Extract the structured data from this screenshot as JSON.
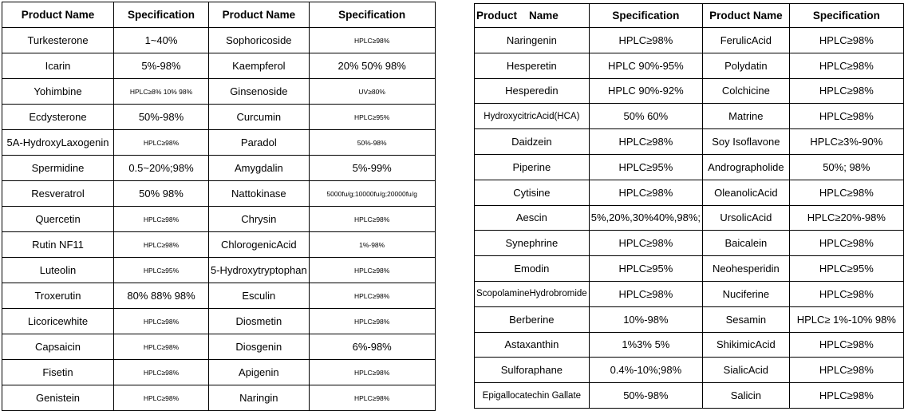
{
  "left_table": {
    "headers": [
      "Product Name",
      "Specification",
      "Product Name",
      "Specification"
    ],
    "rows": [
      [
        "Turkesterone",
        "1~40%",
        "Sophoricoside",
        "HPLC≥98%"
      ],
      [
        "Icarin",
        "5%-98%",
        "Kaempferol",
        "20% 50% 98%"
      ],
      [
        "Yohimbine",
        "HPLC≥8%  10% 98%",
        "Ginsenoside",
        "UV≥80%"
      ],
      [
        "Ecdysterone",
        "50%-98%",
        "Curcumin",
        "HPLC≥95%"
      ],
      [
        "5A-HydroxyLaxogenin",
        "HPLC≥98%",
        "Paradol",
        "50%-98%"
      ],
      [
        "Spermidine",
        "0.5~20%;98%",
        "Amygdalin",
        "5%-99%"
      ],
      [
        "Resveratrol",
        "50% 98%",
        "Nattokinase",
        "5000fu/g;10000fu/g;20000fu/g"
      ],
      [
        "Quercetin",
        "HPLC≥98%",
        "Chrysin",
        "HPLC≥98%"
      ],
      [
        "Rutin  NF11",
        "HPLC≥98%",
        "ChlorogenicAcid",
        "1%-98%"
      ],
      [
        "Luteolin",
        "HPLC≥95%",
        "5-Hydroxytryptophan",
        "HPLC≥98%"
      ],
      [
        "Troxerutin",
        "80% 88% 98%",
        "Esculin",
        "HPLC≥98%"
      ],
      [
        "Licoricewhite",
        "HPLC≥98%",
        "Diosmetin",
        "HPLC≥98%"
      ],
      [
        "Capsaicin",
        "HPLC≥98%",
        "Diosgenin",
        "6%-98%"
      ],
      [
        "Fisetin",
        "HPLC≥98%",
        "Apigenin",
        "HPLC≥98%"
      ],
      [
        "Genistein",
        "HPLC≥98%",
        "Naringin",
        "HPLC≥98%"
      ]
    ]
  },
  "right_table": {
    "headers": [
      "Product    Name",
      "Specification",
      "Product Name",
      "Specification"
    ],
    "rows": [
      [
        "Naringenin",
        "HPLC≥98%",
        "FerulicAcid",
        "HPLC≥98%"
      ],
      [
        "Hesperetin",
        "HPLC 90%-95%",
        "Polydatin",
        "HPLC≥98%"
      ],
      [
        "Hesperedin",
        "HPLC 90%-92%",
        "Colchicine",
        "HPLC≥98%"
      ],
      [
        "HydroxycitricAcid(HCA)",
        "50% 60%",
        "Matrine",
        "HPLC≥98%"
      ],
      [
        "Daidzein",
        "HPLC≥98%",
        "Soy  Isoflavone",
        "HPLC≥3%-90%"
      ],
      [
        "Piperine",
        "HPLC≥95%",
        "Andrographolide",
        "50%; 98%"
      ],
      [
        "Cytisine",
        "HPLC≥98%",
        "OleanolicAcid",
        "HPLC≥98%"
      ],
      [
        "Aescin",
        "5%,20%,30%40%,98%;",
        "UrsolicAcid",
        "HPLC≥20%-98%"
      ],
      [
        "Synephrine",
        "HPLC≥98%",
        "Baicalein",
        "HPLC≥98%"
      ],
      [
        "Emodin",
        "HPLC≥95%",
        "Neohesperidin",
        "HPLC≥95%"
      ],
      [
        "ScopolamineHydrobromide",
        "HPLC≥98%",
        "Nuciferine",
        "HPLC≥98%"
      ],
      [
        "Berberine",
        "10%-98%",
        "Sesamin",
        "HPLC≥ 1%-10% 98%"
      ],
      [
        "Astaxanthin",
        "1%3%  5%",
        "ShikimicAcid",
        "HPLC≥98%"
      ],
      [
        "Sulforaphane",
        "0.4%-10%;98%",
        "SialicAcid",
        "HPLC≥98%"
      ],
      [
        "Epigallocatechin Gallate",
        "50%-98%",
        "Salicin",
        "HPLC≥98%"
      ]
    ]
  }
}
